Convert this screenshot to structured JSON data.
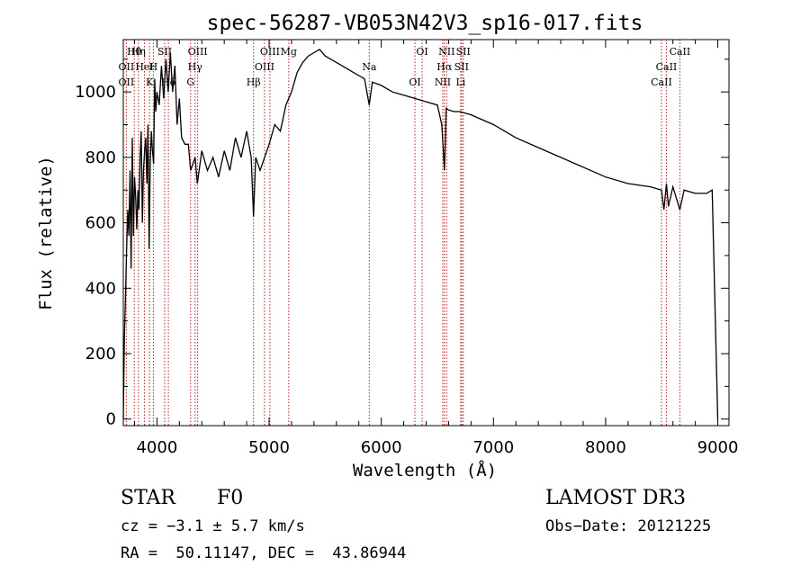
{
  "chart_data": {
    "type": "line",
    "title": "spec-56287-VB053N42V3_sp16-017.fits",
    "xlabel": "Wavelength (Å)",
    "ylabel": "Flux (relative)",
    "xlim": [
      3700,
      9100
    ],
    "ylim": [
      -20,
      1160
    ],
    "x_ticks": [
      4000,
      5000,
      6000,
      7000,
      8000,
      9000
    ],
    "y_ticks": [
      0,
      200,
      400,
      600,
      800,
      1000
    ],
    "grid": false,
    "line_color": "#000000",
    "marker_color": "#b22222",
    "spectrum": {
      "x": [
        3700,
        3710,
        3720,
        3730,
        3740,
        3750,
        3760,
        3770,
        3780,
        3790,
        3800,
        3810,
        3820,
        3830,
        3840,
        3850,
        3860,
        3870,
        3880,
        3890,
        3900,
        3910,
        3920,
        3930,
        3940,
        3950,
        3960,
        3970,
        3980,
        3990,
        4000,
        4020,
        4040,
        4060,
        4080,
        4100,
        4120,
        4140,
        4160,
        4180,
        4200,
        4220,
        4250,
        4280,
        4300,
        4320,
        4340,
        4360,
        4400,
        4450,
        4500,
        4550,
        4600,
        4650,
        4700,
        4750,
        4800,
        4840,
        4861,
        4880,
        4920,
        4960,
        5000,
        5050,
        5100,
        5150,
        5200,
        5250,
        5300,
        5350,
        5400,
        5450,
        5500,
        5550,
        5600,
        5650,
        5700,
        5750,
        5800,
        5850,
        5893,
        5920,
        6000,
        6100,
        6200,
        6300,
        6400,
        6500,
        6540,
        6563,
        6580,
        6600,
        6650,
        6700,
        6800,
        7000,
        7200,
        7400,
        7600,
        7800,
        8000,
        8200,
        8400,
        8498,
        8520,
        8542,
        8560,
        8600,
        8662,
        8700,
        8800,
        8900,
        8950,
        9000
      ],
      "y": [
        0,
        250,
        380,
        520,
        640,
        560,
        760,
        460,
        860,
        560,
        740,
        680,
        580,
        700,
        640,
        800,
        880,
        600,
        760,
        820,
        860,
        720,
        900,
        520,
        780,
        880,
        820,
        780,
        1040,
        940,
        1000,
        960,
        1080,
        980,
        1100,
        1000,
        1120,
        1000,
        1080,
        900,
        980,
        860,
        840,
        840,
        760,
        780,
        800,
        720,
        820,
        760,
        800,
        740,
        820,
        760,
        860,
        800,
        880,
        800,
        620,
        800,
        760,
        800,
        840,
        900,
        880,
        960,
        1000,
        1060,
        1090,
        1110,
        1120,
        1130,
        1110,
        1100,
        1090,
        1080,
        1070,
        1060,
        1050,
        1040,
        960,
        1030,
        1020,
        1000,
        990,
        980,
        970,
        960,
        900,
        760,
        950,
        945,
        940,
        940,
        930,
        900,
        860,
        830,
        800,
        770,
        740,
        720,
        710,
        700,
        640,
        720,
        650,
        710,
        640,
        700,
        690,
        690,
        700,
        0
      ]
    },
    "lines": [
      {
        "label": "Hθ",
        "wavelength": 3798
      },
      {
        "label": "OII",
        "wavelength": 3727
      },
      {
        "label": "OII",
        "wavelength": 3727
      },
      {
        "label": "Hη",
        "wavelength": 3835
      },
      {
        "label": "HeI",
        "wavelength": 3889
      },
      {
        "label": "K",
        "wavelength": 3934
      },
      {
        "label": "SII",
        "wavelength": 4069
      },
      {
        "label": "H",
        "wavelength": 3968
      },
      {
        "label": "Hδ",
        "wavelength": 4102
      },
      {
        "label": "OIII",
        "wavelength": 4363
      },
      {
        "label": "Hγ",
        "wavelength": 4340
      },
      {
        "label": "G",
        "wavelength": 4300
      },
      {
        "label": "OIII",
        "wavelength": 5007
      },
      {
        "label": "OIII",
        "wavelength": 4959
      },
      {
        "label": "Hβ",
        "wavelength": 4861
      },
      {
        "label": "Mg",
        "wavelength": 5175
      },
      {
        "label": "Na",
        "wavelength": 5893
      },
      {
        "label": "OI",
        "wavelength": 6300
      },
      {
        "label": "OI",
        "wavelength": 6364
      },
      {
        "label": "Hα",
        "wavelength": 6563
      },
      {
        "label": "NII",
        "wavelength": 6548
      },
      {
        "label": "NII",
        "wavelength": 6583
      },
      {
        "label": "SII",
        "wavelength": 6716
      },
      {
        "label": "Li",
        "wavelength": 6708
      },
      {
        "label": "SII",
        "wavelength": 6731
      },
      {
        "label": "CaII",
        "wavelength": 8542
      },
      {
        "label": "CaII",
        "wavelength": 8498
      },
      {
        "label": "CaII",
        "wavelength": 8662
      }
    ]
  },
  "info": {
    "object_class": "STAR",
    "subclass": "F0",
    "survey": "LAMOST DR3",
    "cz": "cz = −3.1 ± 5.7 km/s",
    "obs_date": "Obs−Date: 20121225",
    "coords": "RA =  50.11147, DEC =  43.86944"
  }
}
